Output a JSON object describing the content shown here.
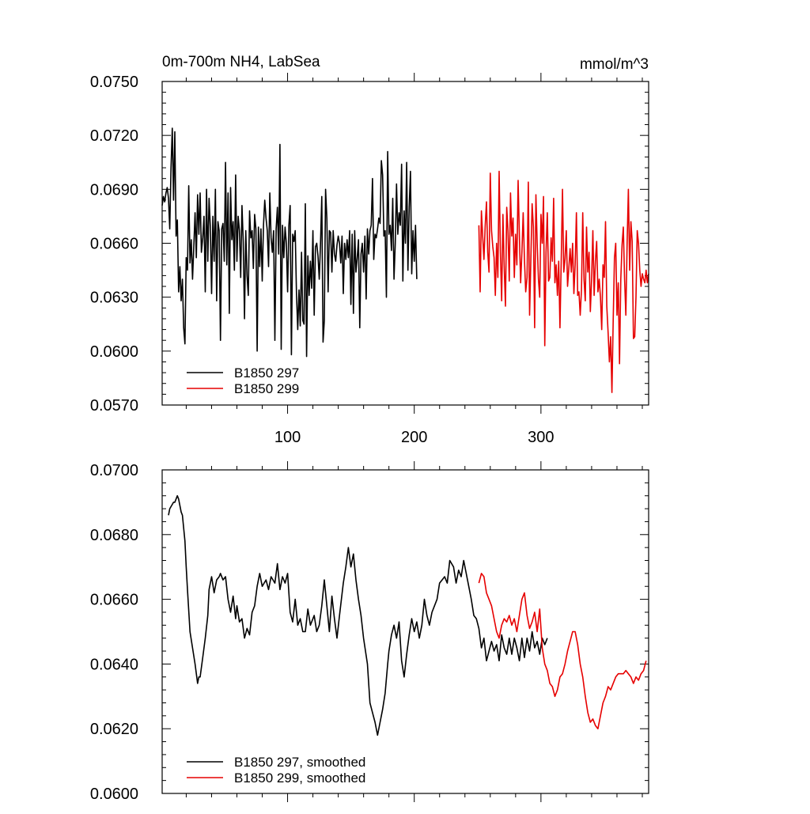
{
  "chart_data": [
    {
      "type": "line",
      "title": "0m-700m NH4, LabSea",
      "units": "mmol/m^3",
      "xlim": [
        1,
        385
      ],
      "ylim": [
        0.057,
        0.075
      ],
      "x_ticks": [
        100,
        200,
        300
      ],
      "x_tick_labels": [
        "100",
        "200",
        "300"
      ],
      "y_ticks": [
        0.057,
        0.06,
        0.063,
        0.066,
        0.069,
        0.072,
        0.075
      ],
      "y_tick_labels": [
        "0.0570",
        "0.0600",
        "0.0630",
        "0.0660",
        "0.0690",
        "0.0720",
        "0.0750"
      ],
      "legend_position": "bottom-left",
      "grid": false,
      "series": [
        {
          "name": "B1850 297",
          "color": "#000000",
          "x_start": 1,
          "values": [
            0.0681,
            0.0686,
            0.0683,
            0.0688,
            0.0691,
            0.0685,
            0.0668,
            0.0702,
            0.0724,
            0.0684,
            0.0722,
            0.0664,
            0.0673,
            0.0633,
            0.0647,
            0.0628,
            0.064,
            0.0613,
            0.0604,
            0.0652,
            0.0645,
            0.0692,
            0.0649,
            0.0662,
            0.064,
            0.0658,
            0.0677,
            0.0652,
            0.0687,
            0.0665,
            0.0688,
            0.0655,
            0.0663,
            0.0675,
            0.0633,
            0.069,
            0.065,
            0.0685,
            0.0669,
            0.0632,
            0.0675,
            0.065,
            0.069,
            0.0628,
            0.0672,
            0.0667,
            0.0606,
            0.0668,
            0.0671,
            0.065,
            0.0705,
            0.0648,
            0.0688,
            0.0621,
            0.0691,
            0.0662,
            0.0672,
            0.0645,
            0.0698,
            0.065,
            0.0675,
            0.0667,
            0.0641,
            0.0681,
            0.0661,
            0.0618,
            0.0667,
            0.0642,
            0.0631,
            0.0678,
            0.0663,
            0.0667,
            0.0646,
            0.0676,
            0.0668,
            0.06,
            0.0669,
            0.0647,
            0.0668,
            0.0639,
            0.067,
            0.0684,
            0.0674,
            0.0667,
            0.0647,
            0.0688,
            0.0663,
            0.0655,
            0.0667,
            0.0606,
            0.0668,
            0.068,
            0.0654,
            0.0715,
            0.0601,
            0.067,
            0.0652,
            0.0669,
            0.066,
            0.0633,
            0.067,
            0.0681,
            0.0598,
            0.0665,
            0.0661,
            0.0667,
            0.0632,
            0.0612,
            0.0634,
            0.0614,
            0.0655,
            0.0617,
            0.0615,
            0.0682,
            0.0597,
            0.0653,
            0.0631,
            0.065,
            0.0635,
            0.0667,
            0.062,
            0.0658,
            0.066,
            0.0653,
            0.064,
            0.066,
            0.0686,
            0.0605,
            0.0617,
            0.069,
            0.0674,
            0.0633,
            0.0667,
            0.0666,
            0.0644,
            0.0667,
            0.0654,
            0.065,
            0.0659,
            0.0664,
            0.066,
            0.0649,
            0.0664,
            0.0632,
            0.066,
            0.0651,
            0.0662,
            0.0652,
            0.0667,
            0.0626,
            0.0665,
            0.0621,
            0.0667,
            0.0644,
            0.0652,
            0.0662,
            0.0613,
            0.0654,
            0.066,
            0.0644,
            0.0664,
            0.0629,
            0.0668,
            0.0654,
            0.0667,
            0.067,
            0.0696,
            0.0651,
            0.0665,
            0.0663,
            0.0668,
            0.0674,
            0.0671,
            0.0706,
            0.0698,
            0.0664,
            0.0667,
            0.063,
            0.0711,
            0.0665,
            0.067,
            0.0656,
            0.0685,
            0.064,
            0.066,
            0.0693,
            0.0665,
            0.0677,
            0.067,
            0.0704,
            0.0639,
            0.0678,
            0.066,
            0.0705,
            0.0645,
            0.068,
            0.07,
            0.0643,
            0.0667,
            0.065,
            0.067,
            0.064
          ]
        },
        {
          "name": "B1850 299",
          "color": "#e60000",
          "x_start": 251,
          "values": [
            0.067,
            0.0633,
            0.0678,
            0.0664,
            0.0651,
            0.067,
            0.0683,
            0.0655,
            0.0644,
            0.0699,
            0.0667,
            0.0658,
            0.0652,
            0.0631,
            0.066,
            0.0641,
            0.07,
            0.0655,
            0.0628,
            0.0676,
            0.0647,
            0.0625,
            0.068,
            0.0667,
            0.0639,
            0.0688,
            0.0664,
            0.0674,
            0.0641,
            0.0665,
            0.0648,
            0.0695,
            0.0664,
            0.0638,
            0.0655,
            0.0677,
            0.0651,
            0.0633,
            0.0641,
            0.0694,
            0.062,
            0.0651,
            0.0682,
            0.0669,
            0.0613,
            0.0687,
            0.066,
            0.064,
            0.063,
            0.0676,
            0.066,
            0.0686,
            0.0603,
            0.0655,
            0.0677,
            0.0639,
            0.0641,
            0.0663,
            0.065,
            0.0685,
            0.0638,
            0.0648,
            0.0631,
            0.065,
            0.0613,
            0.065,
            0.069,
            0.0644,
            0.0651,
            0.0667,
            0.0636,
            0.0646,
            0.0657,
            0.0644,
            0.066,
            0.0632,
            0.0648,
            0.0677,
            0.0631,
            0.0633,
            0.062,
            0.0634,
            0.0677,
            0.064,
            0.0628,
            0.0669,
            0.0644,
            0.0655,
            0.0622,
            0.064,
            0.0667,
            0.0631,
            0.065,
            0.0661,
            0.0633,
            0.064,
            0.063,
            0.0612,
            0.0648,
            0.0641,
            0.0672,
            0.0625,
            0.061,
            0.0594,
            0.0608,
            0.0577,
            0.0617,
            0.0652,
            0.066,
            0.062,
            0.0638,
            0.0593,
            0.064,
            0.0659,
            0.0669,
            0.064,
            0.062,
            0.066,
            0.069,
            0.0645,
            0.0672,
            0.0661,
            0.0607,
            0.0608,
            0.063,
            0.0667,
            0.066,
            0.0645,
            0.0636,
            0.0643,
            0.064,
            0.0638,
            0.0645,
            0.0638,
            0.0643
          ]
        }
      ]
    },
    {
      "type": "line",
      "xlim": [
        1,
        385
      ],
      "ylim": [
        0.06,
        0.07
      ],
      "x_ticks": [
        100,
        200,
        300
      ],
      "y_ticks": [
        0.06,
        0.062,
        0.064,
        0.066,
        0.068,
        0.07
      ],
      "y_tick_labels": [
        "0.0600",
        "0.0620",
        "0.0640",
        "0.0660",
        "0.0680",
        "0.0700"
      ],
      "legend_position": "bottom-left",
      "grid": false,
      "series": [
        {
          "name": "B1850 297, smoothed",
          "color": "#000000",
          "x": [
            6,
            7,
            10,
            11,
            13,
            14,
            16,
            17,
            19,
            20,
            21,
            23,
            25,
            27,
            29,
            30,
            31,
            33,
            35,
            37,
            38,
            40,
            42,
            44,
            46,
            47,
            49,
            51,
            53,
            55,
            57,
            59,
            60,
            62,
            64,
            66,
            68,
            70,
            72,
            74,
            76,
            78,
            80,
            83,
            85,
            87,
            90,
            92,
            94,
            96,
            98,
            100,
            102,
            104,
            106,
            108,
            110,
            112,
            114,
            116,
            118,
            121,
            123,
            125,
            127,
            129,
            131,
            133,
            135,
            137,
            139,
            141,
            144,
            146,
            148,
            150,
            152,
            154,
            156,
            158,
            160,
            163,
            165,
            167,
            169,
            171,
            173,
            175,
            177,
            179,
            180,
            182,
            184,
            186,
            188,
            190,
            192,
            194,
            196,
            198,
            200,
            202,
            204,
            206,
            208,
            210,
            212,
            214,
            216,
            218,
            220,
            222,
            224,
            226,
            228,
            231,
            233,
            235,
            237,
            239,
            241,
            243,
            245,
            247,
            249,
            251,
            253,
            255,
            257,
            259,
            261,
            263,
            265,
            267,
            269,
            271,
            273,
            275,
            277,
            279,
            281,
            283,
            285,
            287,
            289,
            291,
            293,
            295,
            297,
            299,
            301,
            303,
            305
          ],
          "values": [
            0.0686,
            0.0688,
            0.069,
            0.069,
            0.0692,
            0.0691,
            0.0687,
            0.0686,
            0.0678,
            0.067,
            0.0663,
            0.065,
            0.0645,
            0.064,
            0.0634,
            0.0636,
            0.0636,
            0.0642,
            0.0648,
            0.0655,
            0.0663,
            0.0667,
            0.0662,
            0.0666,
            0.0667,
            0.0668,
            0.0666,
            0.0667,
            0.066,
            0.0656,
            0.0661,
            0.0654,
            0.0658,
            0.0653,
            0.0654,
            0.0648,
            0.0651,
            0.0649,
            0.0656,
            0.0658,
            0.0664,
            0.0668,
            0.0664,
            0.0666,
            0.0663,
            0.0667,
            0.0665,
            0.0671,
            0.0663,
            0.0667,
            0.0665,
            0.0668,
            0.0656,
            0.0653,
            0.066,
            0.0652,
            0.0654,
            0.065,
            0.065,
            0.0657,
            0.0652,
            0.0655,
            0.065,
            0.0652,
            0.0658,
            0.0666,
            0.0658,
            0.065,
            0.0661,
            0.0654,
            0.0648,
            0.0655,
            0.0665,
            0.067,
            0.0676,
            0.067,
            0.0674,
            0.0666,
            0.066,
            0.0655,
            0.0648,
            0.064,
            0.0628,
            0.0625,
            0.0622,
            0.0618,
            0.0622,
            0.0626,
            0.0631,
            0.064,
            0.0644,
            0.0649,
            0.0652,
            0.0648,
            0.0653,
            0.0641,
            0.0636,
            0.0643,
            0.0649,
            0.0654,
            0.065,
            0.0653,
            0.0648,
            0.0652,
            0.066,
            0.0655,
            0.0652,
            0.0656,
            0.0658,
            0.066,
            0.0665,
            0.0666,
            0.0667,
            0.0665,
            0.0672,
            0.067,
            0.0665,
            0.0669,
            0.0667,
            0.0672,
            0.0668,
            0.0664,
            0.066,
            0.0655,
            0.0654,
            0.0651,
            0.0645,
            0.0648,
            0.0641,
            0.0644,
            0.0647,
            0.0644,
            0.0646,
            0.0641,
            0.0649,
            0.0645,
            0.0643,
            0.0648,
            0.0643,
            0.0648,
            0.0645,
            0.0641,
            0.0648,
            0.0642,
            0.0648,
            0.0644,
            0.065,
            0.0645,
            0.0647,
            0.0643,
            0.0648,
            0.0646,
            0.0648
          ]
        },
        {
          "name": "B1850 299, smoothed",
          "color": "#e60000",
          "x": [
            251,
            253,
            255,
            257,
            259,
            261,
            263,
            265,
            267,
            269,
            271,
            273,
            275,
            277,
            279,
            281,
            283,
            285,
            287,
            289,
            291,
            293,
            295,
            297,
            299,
            301,
            303,
            305,
            307,
            309,
            311,
            313,
            315,
            317,
            319,
            321,
            323,
            325,
            327,
            329,
            331,
            333,
            335,
            337,
            339,
            341,
            343,
            345,
            347,
            349,
            351,
            353,
            355,
            357,
            359,
            361,
            363,
            365,
            367,
            369,
            371,
            373,
            375,
            377,
            379,
            381,
            383
          ],
          "values": [
            0.0665,
            0.0668,
            0.0667,
            0.0662,
            0.066,
            0.0658,
            0.0654,
            0.065,
            0.0648,
            0.0652,
            0.0654,
            0.0653,
            0.0655,
            0.0652,
            0.0654,
            0.065,
            0.0655,
            0.066,
            0.0662,
            0.0655,
            0.0651,
            0.0653,
            0.0656,
            0.065,
            0.0657,
            0.0645,
            0.064,
            0.0638,
            0.0634,
            0.0633,
            0.063,
            0.0632,
            0.0636,
            0.0637,
            0.064,
            0.0644,
            0.0647,
            0.065,
            0.065,
            0.0646,
            0.064,
            0.0636,
            0.063,
            0.0625,
            0.0622,
            0.0623,
            0.0621,
            0.062,
            0.0624,
            0.0628,
            0.063,
            0.0633,
            0.0632,
            0.0634,
            0.0636,
            0.0637,
            0.0637,
            0.0637,
            0.0638,
            0.0637,
            0.0636,
            0.0634,
            0.0636,
            0.0635,
            0.0637,
            0.0638,
            0.0641
          ]
        }
      ]
    }
  ]
}
